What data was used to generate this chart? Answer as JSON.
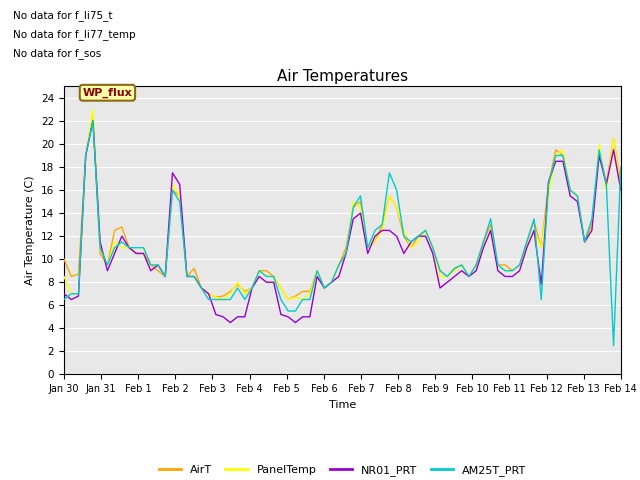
{
  "title": "Air Temperatures",
  "xlabel": "Time",
  "ylabel": "Air Temperature (C)",
  "ylim": [
    0,
    25
  ],
  "yticks": [
    0,
    2,
    4,
    6,
    8,
    10,
    12,
    14,
    16,
    18,
    20,
    22,
    24
  ],
  "x_labels": [
    "Jan 30",
    "Jan 31",
    "Feb 1",
    "Feb 2",
    "Feb 3",
    "Feb 4",
    "Feb 5",
    "Feb 6",
    "Feb 7",
    "Feb 8",
    "Feb 9",
    "Feb 10",
    "Feb 11",
    "Feb 12",
    "Feb 13",
    "Feb 14"
  ],
  "no_data_text": [
    "No data for f_li75_t",
    "No data for f_li77_temp",
    "No data for f_sos"
  ],
  "wp_flux_label": "WP_flux",
  "colors": {
    "AirT": "#FFA500",
    "PanelTemp": "#FFFF00",
    "NR01_PRT": "#9900CC",
    "AM25T_PRT": "#00CCCC"
  },
  "bg_color": "#E8E8E8",
  "AirT": [
    10.0,
    8.5,
    8.7,
    19.0,
    22.5,
    10.5,
    9.5,
    12.5,
    12.8,
    11.0,
    10.5,
    10.5,
    9.5,
    9.0,
    8.5,
    16.0,
    15.5,
    8.5,
    9.2,
    7.5,
    7.0,
    6.7,
    6.8,
    7.2,
    7.8,
    7.2,
    7.5,
    9.0,
    9.0,
    8.5,
    7.5,
    6.5,
    6.8,
    7.2,
    7.2,
    9.0,
    7.5,
    8.0,
    9.5,
    11.0,
    14.5,
    15.0,
    11.0,
    11.5,
    13.0,
    15.5,
    14.5,
    12.0,
    11.0,
    12.0,
    12.5,
    11.0,
    9.0,
    8.5,
    9.2,
    9.5,
    8.5,
    9.5,
    11.5,
    13.0,
    9.5,
    9.5,
    9.0,
    9.5,
    11.5,
    13.3,
    11.0,
    16.5,
    19.5,
    19.0,
    16.0,
    15.5,
    11.5,
    13.0,
    19.5,
    16.5,
    20.5,
    16.5
  ],
  "PanelTemp": [
    8.5,
    7.0,
    7.0,
    19.0,
    23.0,
    11.0,
    9.5,
    11.5,
    11.0,
    11.0,
    11.0,
    11.0,
    9.5,
    9.5,
    8.5,
    16.5,
    15.5,
    8.5,
    8.5,
    7.5,
    7.0,
    6.7,
    6.5,
    7.0,
    8.0,
    7.0,
    7.5,
    9.0,
    8.5,
    8.5,
    7.5,
    6.5,
    6.7,
    6.5,
    7.0,
    9.0,
    7.5,
    8.0,
    9.5,
    10.5,
    15.0,
    14.5,
    11.0,
    11.5,
    12.5,
    15.5,
    14.5,
    12.5,
    11.0,
    11.5,
    12.5,
    11.0,
    8.5,
    8.5,
    9.0,
    9.5,
    8.5,
    9.5,
    11.0,
    12.5,
    9.5,
    9.0,
    9.0,
    9.5,
    11.0,
    12.5,
    11.0,
    15.5,
    19.0,
    19.5,
    16.0,
    15.5,
    11.5,
    12.5,
    20.0,
    16.0,
    20.5,
    16.0
  ],
  "NR01_PRT": [
    7.0,
    6.5,
    6.8,
    19.0,
    22.0,
    11.5,
    9.0,
    10.5,
    12.0,
    11.0,
    10.5,
    10.5,
    9.0,
    9.5,
    8.5,
    17.5,
    16.5,
    8.5,
    8.5,
    7.5,
    7.0,
    5.2,
    5.0,
    4.5,
    5.0,
    5.0,
    7.5,
    8.5,
    8.0,
    8.0,
    5.2,
    5.0,
    4.5,
    5.0,
    5.0,
    8.5,
    7.5,
    8.0,
    8.5,
    10.5,
    13.5,
    14.0,
    10.5,
    12.0,
    12.5,
    12.5,
    12.0,
    10.5,
    11.5,
    12.0,
    12.0,
    10.5,
    7.5,
    8.0,
    8.5,
    9.0,
    8.5,
    9.0,
    11.0,
    12.5,
    9.0,
    8.5,
    8.5,
    9.0,
    11.0,
    12.5,
    7.8,
    16.7,
    18.5,
    18.5,
    15.5,
    15.0,
    11.5,
    12.5,
    19.0,
    16.5,
    19.5,
    16.0
  ],
  "AM25T_PRT": [
    6.5,
    7.0,
    7.0,
    19.0,
    22.0,
    11.0,
    9.5,
    11.0,
    11.5,
    11.0,
    11.0,
    11.0,
    9.5,
    9.5,
    8.5,
    16.0,
    15.0,
    8.5,
    8.5,
    7.5,
    6.5,
    6.5,
    6.5,
    6.5,
    7.5,
    6.5,
    7.5,
    9.0,
    8.5,
    8.5,
    6.5,
    5.5,
    5.5,
    6.5,
    6.5,
    9.0,
    7.5,
    8.0,
    9.5,
    10.5,
    14.5,
    15.5,
    11.0,
    12.5,
    13.0,
    17.5,
    16.0,
    12.0,
    11.5,
    12.0,
    12.5,
    11.0,
    9.0,
    8.5,
    9.2,
    9.5,
    8.5,
    9.5,
    11.5,
    13.5,
    9.5,
    9.0,
    9.0,
    9.5,
    11.5,
    13.5,
    6.5,
    16.5,
    19.0,
    19.0,
    16.0,
    15.5,
    11.5,
    13.5,
    19.5,
    16.5,
    2.5,
    18.0
  ]
}
